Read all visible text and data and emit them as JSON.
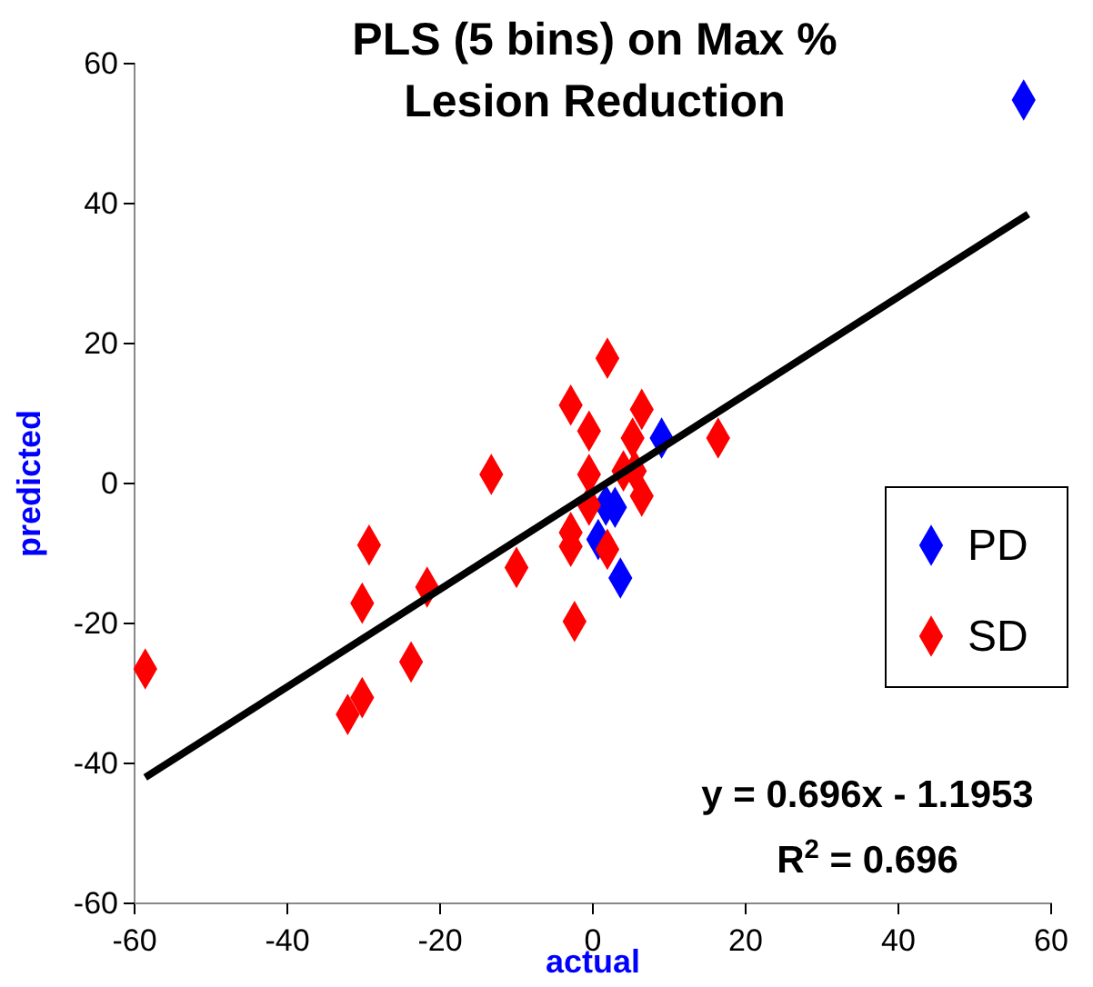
{
  "chart_data": {
    "type": "scatter",
    "title": "PLS (5 bins) on Max % Lesion Reduction",
    "xlabel": "actual",
    "ylabel": "predicted",
    "xlim": [
      -60,
      60
    ],
    "ylim": [
      -60,
      60
    ],
    "xticks": [
      -60,
      -40,
      -20,
      0,
      20,
      40,
      60
    ],
    "yticks": [
      -60,
      -40,
      -20,
      0,
      20,
      40,
      60
    ],
    "grid": false,
    "legend": "right",
    "marker": "diamond",
    "series": [
      {
        "name": "PD",
        "color": "#0000ff",
        "x": [
          56.4,
          1.7,
          2.9,
          0.7,
          3.6,
          9
        ],
        "values": [
          54.8,
          -3.1,
          -3.4,
          -8,
          -13.5,
          6.5
        ]
      },
      {
        "name": "SD",
        "color": "#ff0000",
        "x": [
          -58.6,
          -29.3,
          -30.2,
          -21.7,
          -23.8,
          -30.2,
          -32.1,
          -13.3,
          -10,
          -2.4,
          -2.9,
          1.9,
          -0.5,
          -0.5,
          -0.5,
          -2.9,
          -2.9,
          1.9,
          6.4,
          5.2,
          16.4,
          4,
          5.5,
          6.4
        ],
        "values": [
          -26.5,
          -8.8,
          -17.1,
          -14.8,
          -25.5,
          -30.6,
          -33,
          1.3,
          -12,
          -19.7,
          11.2,
          17.9,
          7.5,
          1.3,
          -3.1,
          -7,
          -9,
          -9.4,
          10.6,
          6.5,
          6.5,
          1.8,
          1.8,
          -1.8
        ]
      },
      {
        "type": "line",
        "color": "#000000",
        "marker": "none",
        "line_style": "solid",
        "x": [
          -58.6,
          57
        ],
        "values": [
          -42,
          38.5
        ]
      }
    ],
    "annotations": [
      "y = 0.696x - 1.1953",
      "R$^{2}$ = 0.696"
    ]
  }
}
